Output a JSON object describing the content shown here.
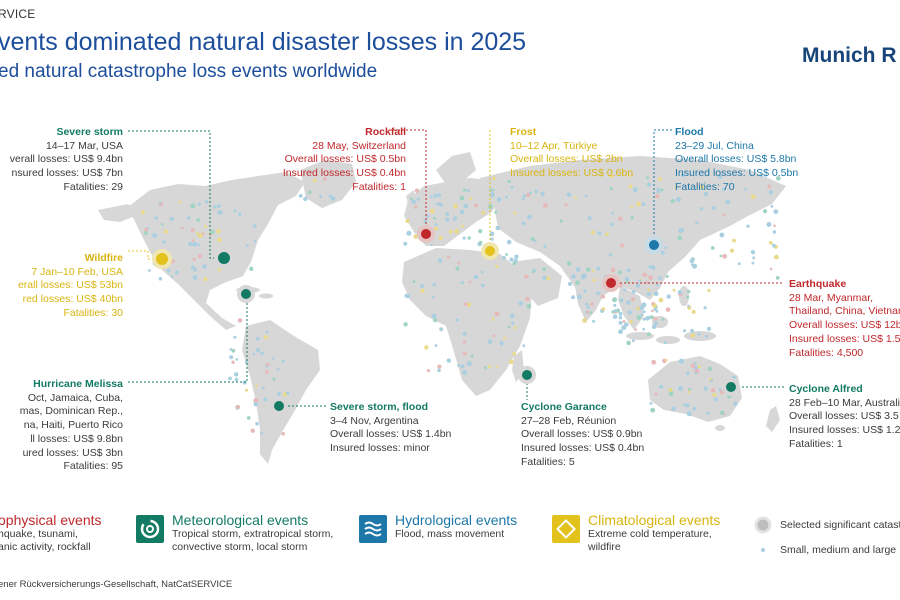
{
  "header": {
    "top_label": "RVICE",
    "title": "vents dominated natural disaster losses in 2025",
    "subtitle": "ed natural catastrophe loss events worldwide",
    "brand": "Munich R"
  },
  "colors": {
    "geophysical": "#c0282c",
    "meteorological": "#137a63",
    "hydrological": "#1d77a8",
    "climatological": "#e3c21b",
    "land": "#d7d7d7",
    "small_event_dot": "#a9cfe0"
  },
  "events": [
    {
      "key": "severe_storm_usa",
      "category": "meteorological",
      "title": "Severe storm",
      "lines": [
        "14–17 Mar, USA",
        "verall losses: US$ 9.4bn",
        "nsured losses: US$ 7bn",
        "Fatalities: 29"
      ]
    },
    {
      "key": "wildfire_usa",
      "category": "climatological",
      "title": "Wildfire",
      "lines": [
        "7 Jan–10 Feb, USA",
        "erall losses: US$ 53bn",
        "red losses: US$ 40bn",
        "Fatalities: 30"
      ]
    },
    {
      "key": "hurricane_melissa",
      "category": "meteorological",
      "title": "Hurricane Melissa",
      "lines": [
        "Oct, Jamaica, Cuba,",
        "mas, Dominican Rep.,",
        "na, Haiti, Puerto Rico",
        "ll losses: US$ 9.8bn",
        "ured losses: US$ 3bn",
        "Fatalities: 95"
      ]
    },
    {
      "key": "rockfall",
      "category": "geophysical",
      "title": "Rockfall",
      "lines": [
        "28 May, Switzerland",
        "Overall losses: US$ 0.5bn",
        "Insured losses: US$ 0.4bn",
        "Fatalities: 1"
      ]
    },
    {
      "key": "frost",
      "category": "climatological",
      "title": "Frost",
      "lines": [
        "10–12 Apr, Türkiye",
        "Overall losses: US$ 2bn",
        "Insured losses: US$ 0.6bn"
      ]
    },
    {
      "key": "flood_china",
      "category": "hydrological",
      "title": "Flood",
      "lines": [
        "23–29 Jul, China",
        "Overall losses: US$ 5.8bn",
        "Insured losses: US$ 0.5bn",
        "Fatalities: 70"
      ]
    },
    {
      "key": "earthquake",
      "category": "geophysical",
      "title": "Earthquake",
      "lines": [
        "28 Mar, Myanmar,",
        "Thailand, China, Vietnam",
        "Overall losses: US$ 12b",
        "Insured losses: US$ 1.5",
        "Fatalities: 4,500"
      ]
    },
    {
      "key": "severe_storm_flood",
      "category": "meteorological",
      "title": "Severe storm, flood",
      "lines": [
        "3–4 Nov, Argentina",
        "Overall losses: US$ 1.4bn",
        "Insured losses: minor"
      ]
    },
    {
      "key": "cyclone_garance",
      "category": "meteorological",
      "title": "Cyclone Garance",
      "lines": [
        "27–28 Feb, Réunion",
        "Overall losses: US$ 0.9bn",
        "Insured losses: US$ 0.4bn",
        "Fatalities: 5"
      ]
    },
    {
      "key": "cyclone_alfred",
      "category": "meteorological",
      "title": "Cyclone Alfred",
      "lines": [
        "28 Feb–10 Mar, Australi",
        "Overall losses: US$ 3.5",
        "Insured losses: US$ 1.2",
        "Fatalities: 1"
      ]
    }
  ],
  "legend": {
    "geophysical": {
      "title": "ophysical events",
      "desc": [
        "hquake, tsunami,",
        "anic activity, rockfall"
      ]
    },
    "meteorological": {
      "title": "Meteorological events",
      "desc": [
        "Tropical storm, extratropical storm,",
        "convective storm, local storm"
      ],
      "icon": "spiral-icon"
    },
    "hydrological": {
      "title": "Hydrological events",
      "desc": [
        "Flood, mass movement"
      ],
      "icon": "waves-icon"
    },
    "climatological": {
      "title": "Climatological events",
      "desc": [
        "Extreme cold temperature,",
        "wildfire"
      ],
      "icon": "diamond-icon"
    },
    "size": {
      "large": "Selected significant catast",
      "small": "Small, medium and large"
    }
  },
  "footer": "ener Rückversicherungs-Gesellschaft, NatCatSERVICE"
}
